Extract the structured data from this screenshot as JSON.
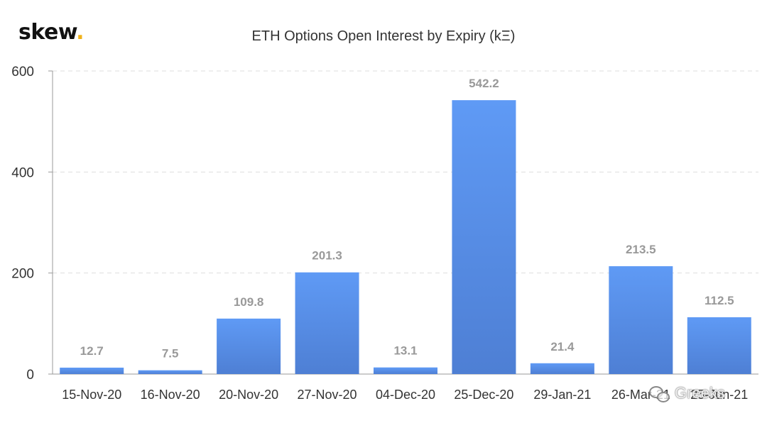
{
  "brand": {
    "name": "skew",
    "dot": "."
  },
  "watermark": {
    "text": "Greeks",
    "icon": "wechat-icon"
  },
  "colors": {
    "bar_top": "#5f9af5",
    "bar_bottom": "#4e7fd4",
    "brand_dot": "#f0b21b"
  },
  "chart_data": {
    "type": "bar",
    "title": "ETH Options Open Interest by Expiry (kΞ)",
    "categories": [
      "15-Nov-20",
      "16-Nov-20",
      "20-Nov-20",
      "27-Nov-20",
      "04-Dec-20",
      "25-Dec-20",
      "29-Jan-21",
      "26-Mar-21",
      "25-Jun-21"
    ],
    "values": [
      12.7,
      7.5,
      109.8,
      201.3,
      13.1,
      542.2,
      21.4,
      213.5,
      112.5
    ],
    "labels": [
      "12.7",
      "7.5",
      "109.8",
      "201.3",
      "13.1",
      "542.2",
      "21.4",
      "213.5",
      "112.5"
    ],
    "ylim": [
      0,
      600
    ],
    "yticks": [
      0,
      200,
      400,
      600
    ],
    "grid": true,
    "legend": "none"
  }
}
